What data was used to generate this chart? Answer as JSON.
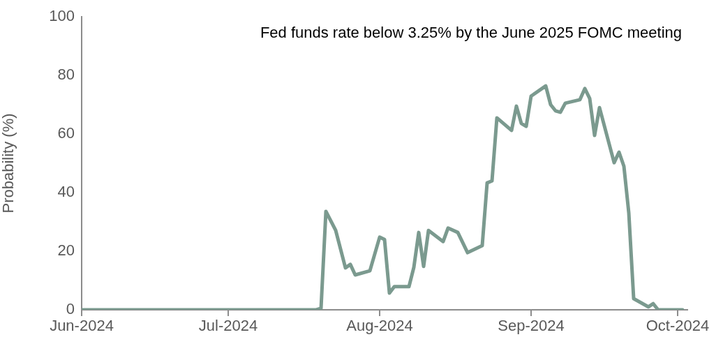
{
  "chart_data": {
    "type": "line",
    "title": "Fed funds rate below 3.25% by the June 2025 FOMC meeting",
    "ylabel": "Probability (%)",
    "x": [
      "2024-06-01",
      "2024-07-19",
      "2024-07-20",
      "2024-07-21",
      "2024-07-23",
      "2024-07-25",
      "2024-07-26",
      "2024-07-27",
      "2024-07-30",
      "2024-08-01",
      "2024-08-02",
      "2024-08-03",
      "2024-08-04",
      "2024-08-07",
      "2024-08-08",
      "2024-08-09",
      "2024-08-10",
      "2024-08-11",
      "2024-08-14",
      "2024-08-15",
      "2024-08-17",
      "2024-08-19",
      "2024-08-22",
      "2024-08-23",
      "2024-08-24",
      "2024-08-25",
      "2024-08-28",
      "2024-08-29",
      "2024-08-30",
      "2024-08-31",
      "2024-09-01",
      "2024-09-04",
      "2024-09-05",
      "2024-09-06",
      "2024-09-07",
      "2024-09-08",
      "2024-09-11",
      "2024-09-12",
      "2024-09-13",
      "2024-09-14",
      "2024-09-15",
      "2024-09-18",
      "2024-09-19",
      "2024-09-20",
      "2024-09-21",
      "2024-09-22",
      "2024-09-25",
      "2024-09-26",
      "2024-09-27",
      "2024-10-02"
    ],
    "series": [
      {
        "color": "#7b9a8f",
        "values": [
          0,
          0,
          0.5,
          33.6,
          27.1,
          14.3,
          15.5,
          11.9,
          13.3,
          24.8,
          24.0,
          5.7,
          7.9,
          7.9,
          14.5,
          26.4,
          14.8,
          27.1,
          23.3,
          27.9,
          26.4,
          19.5,
          21.9,
          43.3,
          44,
          65.5,
          61.2,
          69.5,
          63.6,
          62.6,
          72.9,
          76.4,
          70.0,
          67.9,
          67.4,
          70.5,
          71.7,
          75.5,
          72.1,
          59.5,
          69.0,
          50.2,
          53.8,
          49.0,
          33.1,
          3.8,
          1.0,
          2.1,
          0,
          0
        ]
      }
    ],
    "xlim": [
      "2024-06-01",
      "2024-10-03"
    ],
    "xticks": [
      {
        "value": "2024-06-01",
        "label": "Jun-2024"
      },
      {
        "value": "2024-07-01",
        "label": "Jul-2024"
      },
      {
        "value": "2024-08-01",
        "label": "Aug-2024"
      },
      {
        "value": "2024-09-01",
        "label": "Sep-2024"
      },
      {
        "value": "2024-10-01",
        "label": "Oct-2024"
      }
    ],
    "ylim": [
      0,
      100
    ],
    "yticks": [
      0,
      20,
      40,
      60,
      80,
      100
    ],
    "legend": false,
    "marker": "none",
    "line_style": "solid"
  }
}
